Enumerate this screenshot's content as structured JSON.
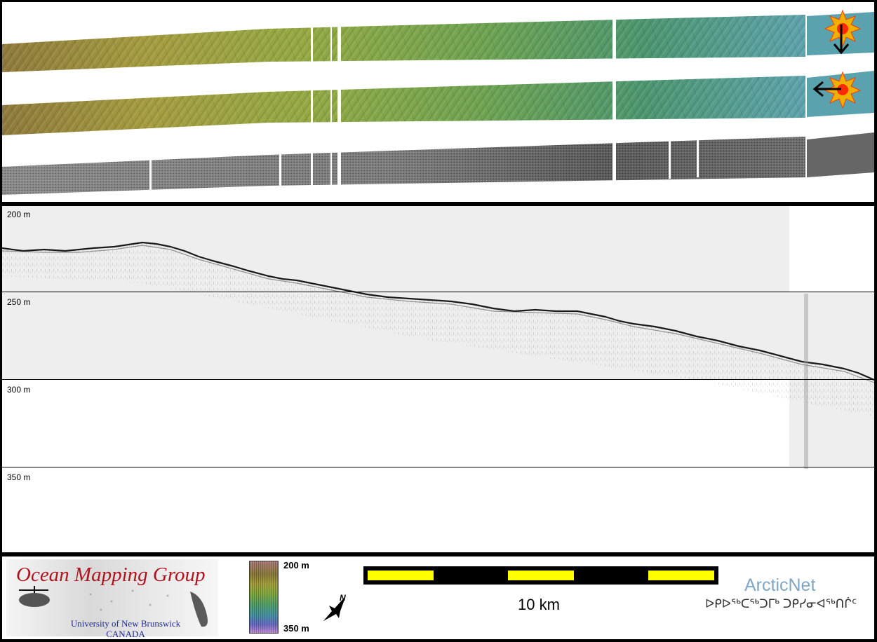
{
  "strips": {
    "rows": [
      {
        "name": "sun-illuminated-north",
        "shading": "colour"
      },
      {
        "name": "sun-illuminated-east",
        "shading": "colour"
      },
      {
        "name": "backscatter",
        "shading": "grey"
      }
    ],
    "sun_icon": "sun-icon",
    "arrow_down_icon": "arrow-down-icon",
    "arrow_left_icon": "arrow-left-icon"
  },
  "profile": {
    "depth_labels": [
      "200 m",
      "250 m",
      "300 m",
      "350 m"
    ],
    "background": "#eeeeee"
  },
  "legend": {
    "logo_title": "Ocean Mapping Group",
    "logo_univ": "University of New Brunswick",
    "logo_country": "CANADA",
    "colorbar_top": "200 m",
    "colorbar_bottom": "350 m",
    "compass_label": "N",
    "scale_label": "10 km",
    "arcticnet": "ArcticNet",
    "arcticnet_syllabics": "ᐅᑭᐅᖅᑕᖅᑐᒥᒃ ᑐᑭᓯᓂᐊᖅᑎᒌᑦ",
    "scale_colors": [
      "#ffff00",
      "#000000"
    ]
  }
}
